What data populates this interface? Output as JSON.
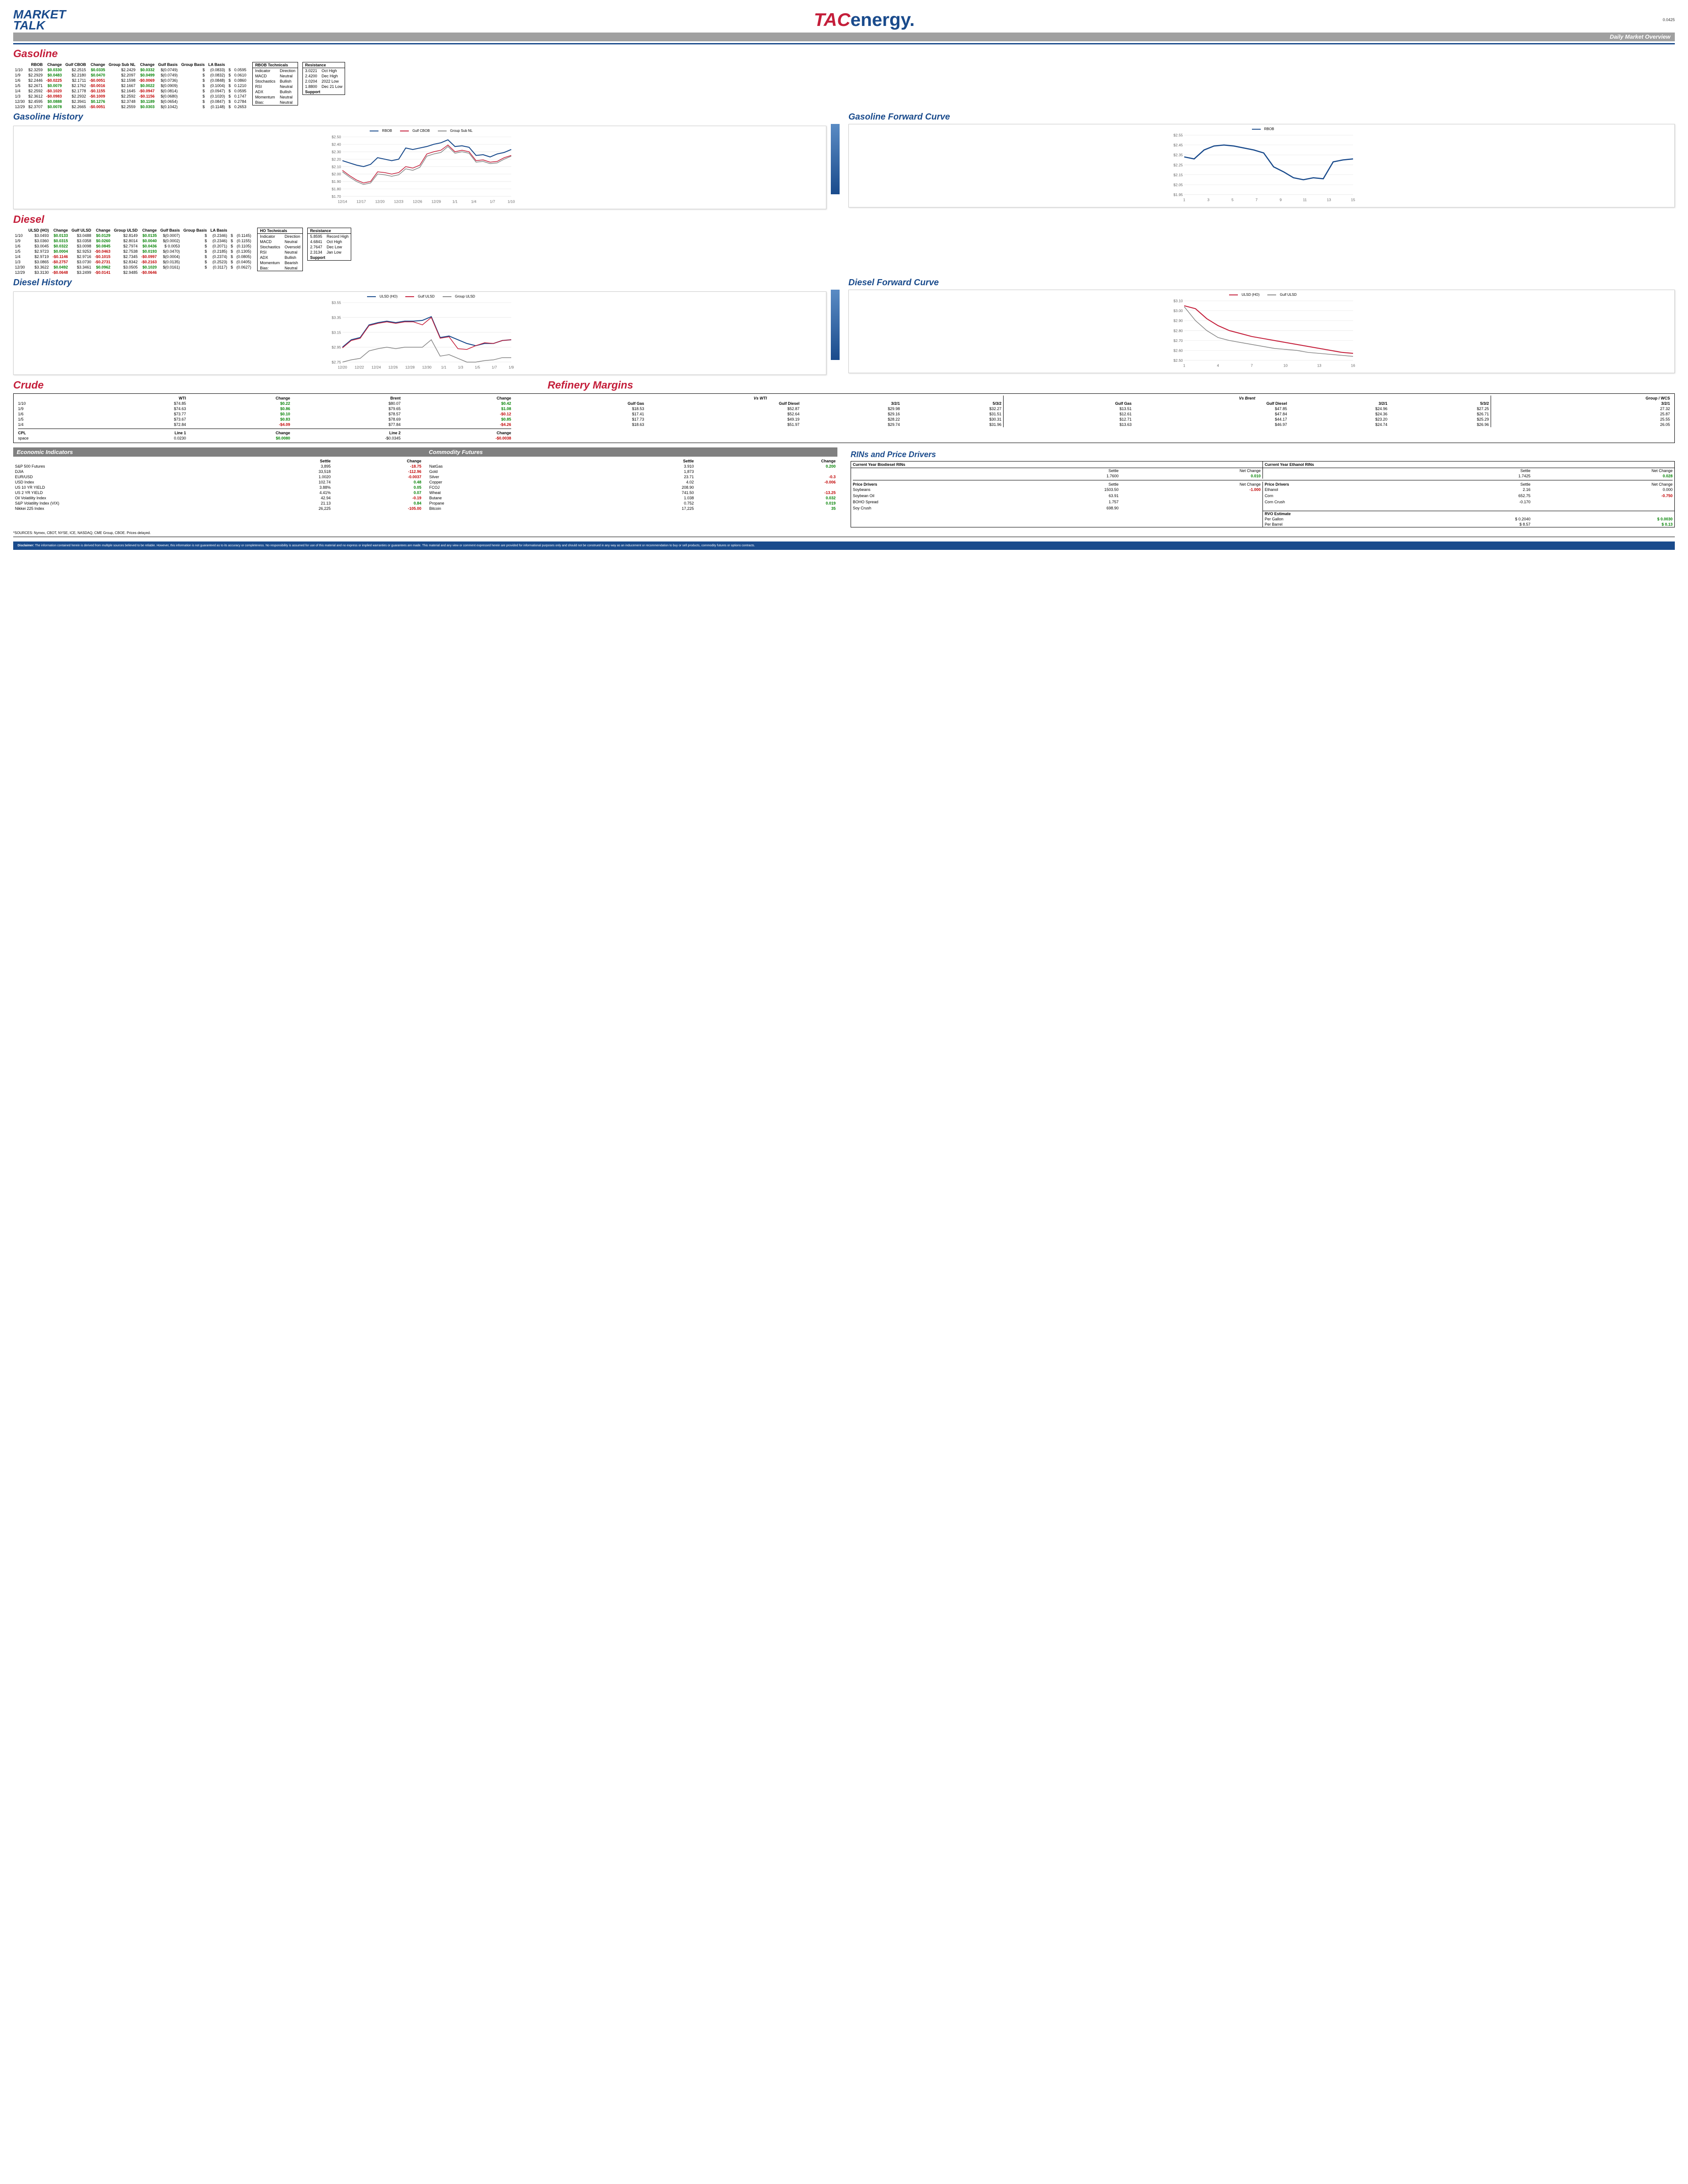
{
  "meta": {
    "version": "0.0425",
    "overview_label": "Daily Market Overview"
  },
  "logos": {
    "market_talk_1": "MARKET",
    "market_talk_2": "TALK",
    "tac": "TAC",
    "energy": "energy."
  },
  "titles": {
    "gasoline": "Gasoline",
    "gas_history": "Gasoline History",
    "gas_forward": "Gasoline Forward Curve",
    "diesel": "Diesel",
    "diesel_history": "Diesel History",
    "diesel_forward": "Diesel Forward Curve",
    "crude": "Crude",
    "refinery": "Refinery Margins",
    "econ": "Economic Indicators",
    "commodity": "Commodity Futures",
    "rins": "RINs and Price Drivers"
  },
  "gasoline": {
    "headers": [
      "",
      "RBOB",
      "Change",
      "Gulf CBOB",
      "Change",
      "Group Sub NL",
      "Change",
      "Gulf Basis",
      "Group Basis",
      "LA Basis"
    ],
    "rows": [
      [
        "1/10",
        "$2.3259",
        "$0.0330",
        "$2.2515",
        "$0.0335",
        "$2.2429",
        "$0.0332",
        "$(0.0749)",
        "$",
        "(0.0833)",
        "$",
        "0.0595"
      ],
      [
        "1/9",
        "$2.2929",
        "$0.0483",
        "$2.2180",
        "$0.0470",
        "$2.2097",
        "$0.0499",
        "$(0.0749)",
        "$",
        "(0.0832)",
        "$",
        "0.0610"
      ],
      [
        "1/6",
        "$2.2446",
        "-$0.0225",
        "$2.1711",
        "-$0.0051",
        "$2.1598",
        "-$0.0069",
        "$(0.0736)",
        "$",
        "(0.0848)",
        "$",
        "0.0860"
      ],
      [
        "1/5",
        "$2.2671",
        "$0.0079",
        "$2.1762",
        "-$0.0016",
        "$2.1667",
        "$0.0022",
        "$(0.0909)",
        "$",
        "(0.1004)",
        "$",
        "0.1210"
      ],
      [
        "1/4",
        "$2.2592",
        "-$0.1020",
        "$2.1778",
        "-$0.1155",
        "$2.1645",
        "-$0.0947",
        "$(0.0814)",
        "$",
        "(0.0947)",
        "$",
        "0.0595"
      ],
      [
        "1/3",
        "$2.3612",
        "-$0.0983",
        "$2.2932",
        "-$0.1009",
        "$2.2592",
        "-$0.1156",
        "$(0.0680)",
        "$",
        "(0.1020)",
        "$",
        "0.1747"
      ],
      [
        "12/30",
        "$2.4595",
        "$0.0888",
        "$2.3941",
        "$0.1276",
        "$2.3748",
        "$0.1189",
        "$(0.0654)",
        "$",
        "(0.0847)",
        "$",
        "0.2784"
      ],
      [
        "12/29",
        "$2.3707",
        "$0.0078",
        "$2.2665",
        "-$0.0051",
        "$2.2559",
        "$0.0303",
        "$(0.1042)",
        "$",
        "(0.1148)",
        "$",
        "0.2653"
      ]
    ],
    "tech_title": "RBOB Technicals",
    "tech_headers": [
      "Indicator",
      "Direction"
    ],
    "tech_rows": [
      [
        "MACD",
        "Neutral"
      ],
      [
        "Stochastics",
        "Bullish"
      ],
      [
        "RSI",
        "Neutral"
      ],
      [
        "ADX",
        "Bullish"
      ],
      [
        "Momentum",
        "Neutral"
      ],
      [
        "Bias:",
        "Neutral"
      ]
    ],
    "res_title": "Resistance",
    "res_rows": [
      [
        "3.0221",
        "Oct High"
      ],
      [
        "2.4200",
        "Dec High"
      ],
      [
        "2.0204",
        "2022 Low"
      ],
      [
        "1.8800",
        "Dec 21 Low"
      ]
    ],
    "sup_title": "Support"
  },
  "gas_history_chart": {
    "type": "line",
    "series": [
      {
        "name": "RBOB",
        "color": "#1a4b8c",
        "width": 2,
        "y": [
          2.18,
          2.15,
          2.12,
          2.1,
          2.13,
          2.22,
          2.2,
          2.18,
          2.2,
          2.35,
          2.33,
          2.35,
          2.37,
          2.4,
          2.42,
          2.46,
          2.37,
          2.38,
          2.36,
          2.25,
          2.26,
          2.23,
          2.27,
          2.29,
          2.33
        ]
      },
      {
        "name": "Gulf CBOB",
        "color": "#c41e3a",
        "width": 1.5,
        "y": [
          2.05,
          1.98,
          1.92,
          1.88,
          1.9,
          2.03,
          2.02,
          2.0,
          2.02,
          2.1,
          2.08,
          2.12,
          2.27,
          2.3,
          2.32,
          2.39,
          2.3,
          2.32,
          2.3,
          2.18,
          2.19,
          2.16,
          2.17,
          2.22,
          2.25
        ]
      },
      {
        "name": "Group Sub NL",
        "color": "#888",
        "width": 1.5,
        "y": [
          2.03,
          1.96,
          1.9,
          1.86,
          1.88,
          2.0,
          1.99,
          1.97,
          1.99,
          2.07,
          2.05,
          2.09,
          2.24,
          2.27,
          2.29,
          2.37,
          2.28,
          2.3,
          2.28,
          2.16,
          2.17,
          2.14,
          2.15,
          2.2,
          2.24
        ]
      }
    ],
    "x_labels": [
      "12/14",
      "12/17",
      "12/20",
      "12/23",
      "12/26",
      "12/29",
      "1/1",
      "1/4",
      "1/7",
      "1/10"
    ],
    "ylim": [
      1.7,
      2.5
    ],
    "ytick": 0.1
  },
  "gas_forward_chart": {
    "type": "line",
    "series": [
      {
        "name": "RBOB",
        "color": "#1a4b8c",
        "width": 2.5,
        "y": [
          2.33,
          2.31,
          2.4,
          2.44,
          2.45,
          2.44,
          2.42,
          2.4,
          2.37,
          2.23,
          2.18,
          2.12,
          2.1,
          2.12,
          2.11,
          2.28,
          2.3,
          2.31
        ]
      }
    ],
    "x_labels": [
      "1",
      "3",
      "5",
      "7",
      "9",
      "11",
      "13",
      "15"
    ],
    "ylim": [
      1.95,
      2.55
    ],
    "ytick": 0.1
  },
  "diesel": {
    "headers": [
      "",
      "ULSD (HO)",
      "Change",
      "Gulf ULSD",
      "Change",
      "Group ULSD",
      "Change",
      "Gulf Basis",
      "Group Basis",
      "LA Basis"
    ],
    "rows": [
      [
        "1/10",
        "$3.0493",
        "$0.0133",
        "$3.0488",
        "$0.0129",
        "$2.8149",
        "$0.0135",
        "$(0.0007)",
        "$",
        "(0.2346)",
        "$",
        "(0.1145)"
      ],
      [
        "1/9",
        "$3.0360",
        "$0.0315",
        "$3.0358",
        "$0.0260",
        "$2.8014",
        "$0.0040",
        "$(0.0002)",
        "$",
        "(0.2346)",
        "$",
        "(0.1155)"
      ],
      [
        "1/6",
        "$3.0045",
        "$0.0322",
        "$3.0098",
        "$0.0845",
        "$2.7974",
        "$0.0436",
        "$ 0.0053",
        "$",
        "(0.2071)",
        "$",
        "(0.1105)"
      ],
      [
        "1/5",
        "$2.9723",
        "$0.0004",
        "$2.9253",
        "-$0.0463",
        "$2.7538",
        "$0.0193",
        "$(0.0470)",
        "$",
        "(0.2185)",
        "$",
        "(0.1305)"
      ],
      [
        "1/4",
        "$2.9719",
        "-$0.1146",
        "$2.9716",
        "-$0.1015",
        "$2.7345",
        "-$0.0997",
        "$(0.0004)",
        "$",
        "(0.2374)",
        "$",
        "(0.0805)"
      ],
      [
        "1/3",
        "$3.0865",
        "-$0.2757",
        "$3.0730",
        "-$0.2731",
        "$2.8342",
        "-$0.2163",
        "$(0.0135)",
        "$",
        "(0.2523)",
        "$",
        "(0.0405)"
      ],
      [
        "12/30",
        "$3.3622",
        "$0.0492",
        "$3.3461",
        "$0.0962",
        "$3.0505",
        "$0.1020",
        "$(0.0161)",
        "$",
        "(0.3117)",
        "$",
        "(0.0627)"
      ],
      [
        "12/29",
        "$3.3130",
        "-$0.0648",
        "$3.2499",
        "-$0.0141",
        "$2.9485",
        "-$0.0646",
        "",
        "",
        "",
        "",
        ""
      ]
    ],
    "tech_title": "HO Technicals",
    "tech_rows": [
      [
        "MACD",
        "Neutral"
      ],
      [
        "Stochastics",
        "Oversold"
      ],
      [
        "RSI",
        "Neutral"
      ],
      [
        "ADX",
        "Bullish"
      ],
      [
        "Momentum",
        "Bearish"
      ],
      [
        "Bias:",
        "Neutral"
      ]
    ],
    "res_rows": [
      [
        "5.8595",
        "Record High"
      ],
      [
        "4.6841",
        "Oct High"
      ],
      [
        "2.7647",
        "Dec Low"
      ],
      [
        "2.3134",
        "Jan Low"
      ]
    ]
  },
  "diesel_history_chart": {
    "type": "line",
    "series": [
      {
        "name": "ULSD (HO)",
        "color": "#1a4b8c",
        "width": 2,
        "y": [
          2.95,
          3.05,
          3.08,
          3.25,
          3.28,
          3.3,
          3.28,
          3.3,
          3.3,
          3.31,
          3.36,
          3.08,
          3.1,
          3.05,
          3.0,
          2.97,
          3.0,
          3.0,
          3.04,
          3.05
        ]
      },
      {
        "name": "Gulf ULSD",
        "color": "#c41e3a",
        "width": 1.5,
        "y": [
          2.94,
          3.04,
          3.07,
          3.24,
          3.27,
          3.29,
          3.27,
          3.29,
          3.29,
          3.25,
          3.35,
          3.07,
          3.09,
          2.93,
          2.92,
          2.97,
          3.01,
          3.0,
          3.04,
          3.05
        ]
      },
      {
        "name": "Group ULSD",
        "color": "#888",
        "width": 1.5,
        "y": [
          2.75,
          2.78,
          2.8,
          2.9,
          2.93,
          2.95,
          2.93,
          2.95,
          2.95,
          2.95,
          3.05,
          2.83,
          2.85,
          2.8,
          2.75,
          2.75,
          2.77,
          2.78,
          2.81,
          2.81
        ]
      }
    ],
    "x_labels": [
      "12/20",
      "12/22",
      "12/24",
      "12/26",
      "12/28",
      "12/30",
      "1/1",
      "1/3",
      "1/5",
      "1/7",
      "1/9"
    ],
    "ylim": [
      2.75,
      3.55
    ],
    "ytick": 0.2
  },
  "diesel_forward_chart": {
    "type": "line",
    "series": [
      {
        "name": "ULSD (HO)",
        "color": "#c41e3a",
        "width": 2,
        "y": [
          3.05,
          3.02,
          2.92,
          2.85,
          2.8,
          2.77,
          2.74,
          2.72,
          2.7,
          2.68,
          2.66,
          2.64,
          2.62,
          2.6,
          2.58,
          2.57
        ]
      },
      {
        "name": "Gulf ULSD",
        "color": "#888",
        "width": 1.5,
        "y": [
          3.04,
          2.9,
          2.8,
          2.73,
          2.7,
          2.68,
          2.66,
          2.64,
          2.62,
          2.61,
          2.6,
          2.58,
          2.57,
          2.56,
          2.55,
          2.54
        ]
      }
    ],
    "x_labels": [
      "1",
      "4",
      "7",
      "10",
      "13",
      "16"
    ],
    "ylim": [
      2.5,
      3.1
    ],
    "ytick": 0.1
  },
  "crude": {
    "headers": [
      "",
      "WTI",
      "Change",
      "Brent",
      "Change"
    ],
    "rows": [
      [
        "1/10",
        "$74.85",
        "$0.22",
        "$80.07",
        "$0.42"
      ],
      [
        "1/9",
        "$74.63",
        "$0.86",
        "$79.65",
        "$1.08"
      ],
      [
        "1/6",
        "$73.77",
        "$0.10",
        "$78.57",
        "-$0.12"
      ],
      [
        "1/5",
        "$73.67",
        "$0.83",
        "$78.69",
        "$0.85"
      ],
      [
        "1/4",
        "$72.84",
        "-$4.09",
        "$77.84",
        "-$4.26"
      ]
    ],
    "cpl_headers": [
      "CPL",
      "Line 1",
      "Change",
      "Line 2",
      "Change"
    ],
    "cpl_row": [
      "space",
      "0.0230",
      "$0.0080",
      "-$0.0345",
      "-$0.0038"
    ]
  },
  "refinery": {
    "wti_headers": [
      "Vs WTI"
    ],
    "brent_headers": [
      "Vs Brent"
    ],
    "cols": [
      "Gulf Gas",
      "Gulf Diesel",
      "3/2/1",
      "5/3/2",
      "Gulf Gas",
      "Gulf Diesel",
      "3/2/1",
      "5/3/2",
      "3/2/1"
    ],
    "group_label": "Group / WCS",
    "rows": [
      [
        "$18.53",
        "$52.87",
        "$29.98",
        "$32.27",
        "$13.51",
        "$47.85",
        "$24.96",
        "$27.25",
        "27.32"
      ],
      [
        "$17.41",
        "$52.64",
        "$29.16",
        "$31.51",
        "$12.61",
        "$47.84",
        "$24.36",
        "$26.71",
        "25.87"
      ],
      [
        "$17.73",
        "$49.19",
        "$28.22",
        "$30.31",
        "$12.71",
        "$44.17",
        "$23.20",
        "$25.29",
        "25.55"
      ],
      [
        "$18.63",
        "$51.97",
        "$29.74",
        "$31.96",
        "$13.63",
        "$46.97",
        "$24.74",
        "$26.96",
        "26.05"
      ]
    ]
  },
  "econ": {
    "headers": [
      "",
      "Settle",
      "Change"
    ],
    "rows": [
      [
        "S&P 500 Futures",
        "3,895",
        "-18.75"
      ],
      [
        "DJIA",
        "33,518",
        "-112.96"
      ],
      [
        "EUR/USD",
        "1.0020",
        "-0.0037"
      ],
      [
        "USD Index",
        "102.74",
        "0.48"
      ],
      [
        "US 10 YR YIELD",
        "3.88%",
        "0.05"
      ],
      [
        "US 2 YR YIELD",
        "4.41%",
        "0.07"
      ],
      [
        "Oil Volatility Index",
        "42.94",
        "-0.19"
      ],
      [
        "S&P Volatility Index (VIX)",
        "21.13",
        "0.84"
      ],
      [
        "Nikkei 225 Index",
        "26,225",
        "-105.00"
      ]
    ]
  },
  "commodity": {
    "headers": [
      "",
      "Settle",
      "Change"
    ],
    "rows": [
      [
        "NatGas",
        "3.910",
        "0.200"
      ],
      [
        "Gold",
        "1,873",
        ""
      ],
      [
        "Silver",
        "23.71",
        "-0.3"
      ],
      [
        "Copper",
        "4.02",
        "-0.006"
      ],
      [
        "FCOJ",
        "208.90",
        ""
      ],
      [
        "Wheat",
        "741.50",
        "-13.25"
      ],
      [
        "Butane",
        "1.038",
        "0.032"
      ],
      [
        "Propane",
        "0.752",
        "0.019"
      ],
      [
        "Bitcoin",
        "17,225",
        "35"
      ]
    ]
  },
  "rins": {
    "bio_title": "Current Year Biodiesel RINs",
    "eth_title": "Current Year Ethanol RINs",
    "bio": {
      "settle": "1.7600",
      "change": "0.010"
    },
    "eth": {
      "settle": "1.7425",
      "change": "0.028"
    },
    "drivers_label": "Price Drivers",
    "left_rows": [
      [
        "Soybeans",
        "1503.50",
        "-1.000"
      ],
      [
        "",
        "",
        ""
      ],
      [
        "Soybean Oil",
        "63.91",
        ""
      ],
      [
        "",
        "",
        ""
      ],
      [
        "BOHO Spread",
        "1.757",
        ""
      ],
      [
        "",
        "",
        ""
      ],
      [
        "Soy Crush",
        "698.90",
        ""
      ]
    ],
    "right_rows": [
      [
        "Ethanol",
        "2.16",
        "0.000"
      ],
      [
        "",
        "",
        ""
      ],
      [
        "Corn",
        "652.75",
        "-0.750"
      ],
      [
        "",
        "",
        ""
      ],
      [
        "Corn Crush",
        "-0.170",
        ""
      ]
    ],
    "rvo_title": "RVO Estimate",
    "rvo_rows": [
      [
        "Per Gallon",
        "$",
        "0.2040",
        "$",
        "0.0030"
      ],
      [
        "Per Barrel",
        "$",
        "8.57",
        "$",
        "0.13"
      ]
    ]
  },
  "sources": "*SOURCES: Nymex, CBOT, NYSE, ICE, NASDAQ, CME Group, CBOE.   Prices delayed.",
  "disclaimer_label": "Disclaimer:",
  "disclaimer": "The information contained herein is derived from multiple sources believed to be reliable. However, this information is not guaranteed as to its accuracy or completeness. No responsibility is assumed for use of this material and no express or implied warranties or guarantees are made. This material and any view or comment expressed herein are provided for informational purposes only and should not be construed in any way as an inducement or recommendation to buy or sell products, commodity futures or options contracts."
}
